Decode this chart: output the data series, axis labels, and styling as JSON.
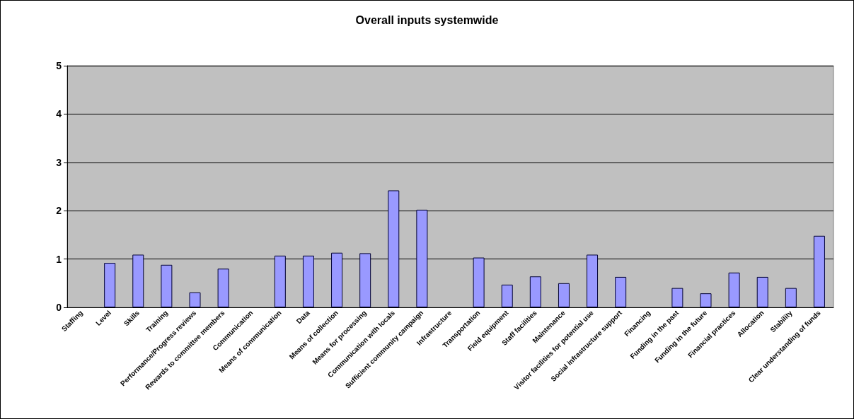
{
  "chart_data": {
    "type": "bar",
    "title": "Overall inputs systemwide",
    "categories": [
      "Staffing",
      "Level",
      "Skills",
      "Training",
      "Performance/Progress reviews",
      "Rewards to committee members",
      "Communication",
      "Means of communication",
      "Data",
      "Means of collection",
      "Means for processing",
      "Communication with locals",
      "Sufficient community campaign",
      "Infrastructure",
      "Transportation",
      "Field equipment",
      "Staff facilities",
      "Maintenance",
      "Visitor facilities for potential use",
      "Social infrastructure support",
      "Financing",
      "Funding in the past",
      "Funding in the future",
      "Financial practices",
      "Allocation",
      "Stability",
      "Clear understanding of funds"
    ],
    "values": [
      0,
      0.92,
      1.09,
      0.88,
      0.31,
      0.8,
      0,
      1.07,
      1.07,
      1.13,
      1.12,
      2.42,
      2.02,
      0,
      1.03,
      0.47,
      0.64,
      0.5,
      1.09,
      0.63,
      0,
      0.4,
      0.29,
      0.72,
      0.63,
      0.4,
      1.48
    ],
    "color": "#9999ff",
    "ylim": [
      0,
      5
    ],
    "yticks": [
      0,
      1,
      2,
      3,
      4,
      5
    ],
    "grid": "y"
  }
}
